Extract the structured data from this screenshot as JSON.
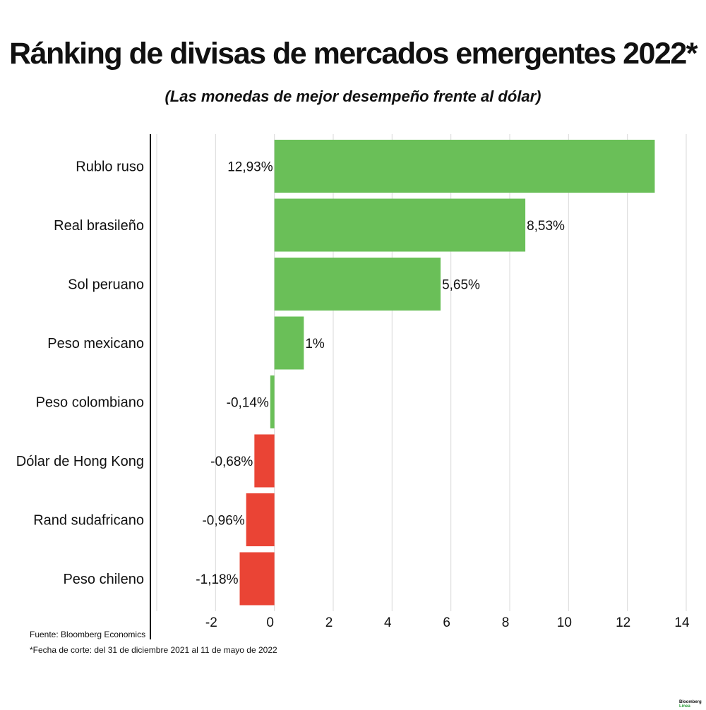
{
  "title": "Ránking de divisas de mercados emergentes 2022*",
  "subtitle": "(Las monedas de mejor desempeño frente al dólar)",
  "source": "Fuente: Bloomberg Economics",
  "footnote": "*Fecha de corte: del 31 de diciembre 2021 al 11 de mayo de 2022",
  "logo": {
    "line1": "Bloomberg",
    "line2": "Línea"
  },
  "colors": {
    "positive": "#6abf58",
    "negative": "#ea4435",
    "grid": "#d9d9d9",
    "axis": "#111111"
  },
  "chart_data": {
    "type": "bar",
    "orientation": "horizontal",
    "categories": [
      "Rublo ruso",
      "Real brasileño",
      "Sol peruano",
      "Peso mexicano",
      "Peso colombiano",
      "Dólar de Hong Kong",
      "Rand sudafricano",
      "Peso chileno"
    ],
    "values": [
      12.93,
      8.53,
      5.65,
      1,
      -0.14,
      -0.68,
      -0.96,
      -1.18
    ],
    "value_labels": [
      "12,93%",
      "8,53%",
      "5,65%",
      "1%",
      "-0,14%",
      "-0,68%",
      "-0,96%",
      "-1,18%"
    ],
    "bar_colors": [
      "#6abf58",
      "#6abf58",
      "#6abf58",
      "#6abf58",
      "#6abf58",
      "#ea4435",
      "#ea4435",
      "#ea4435"
    ],
    "xlim": [
      -4,
      14
    ],
    "xticks": [
      -2,
      0,
      2,
      4,
      6,
      8,
      10,
      12,
      14
    ],
    "xtick_labels": [
      "-2",
      "0",
      "2",
      "4",
      "6",
      "8",
      "10",
      "12",
      "14"
    ],
    "xlabel": "",
    "ylabel": "",
    "grid": true
  }
}
